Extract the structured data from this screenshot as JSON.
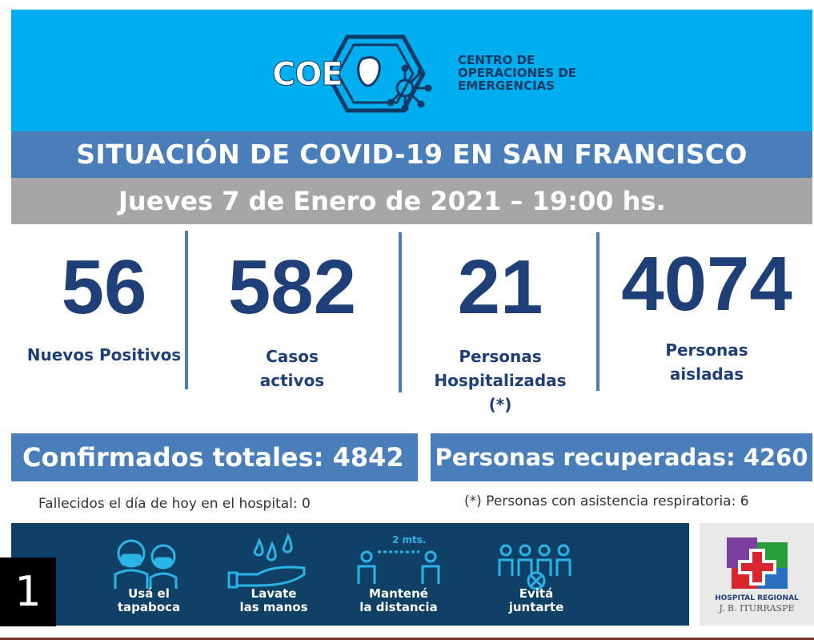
{
  "header": {
    "brand": "COE",
    "org_line1": "CENTRO DE",
    "org_line2": "OPERACIONES DE",
    "org_line3": "EMERGENCIAS"
  },
  "title": "SITUACIÓN DE COVID-19 EN SAN FRANCISCO",
  "date": "Jueves 7 de Enero de 2021 – 19:00 hs.",
  "stats": [
    {
      "value": "56",
      "label_line1": "Nuevos Positivos",
      "label_line2": "",
      "label_line3": ""
    },
    {
      "value": "582",
      "label_line1": "Casos",
      "label_line2": "activos",
      "label_line3": ""
    },
    {
      "value": "21",
      "label_line1": "Personas",
      "label_line2": "Hospitalizadas",
      "label_line3": "(*)"
    },
    {
      "value": "4074",
      "label_line1": "Personas",
      "label_line2": "aisladas",
      "label_line3": ""
    }
  ],
  "confirmed": "Confirmados totales: 4842",
  "recovered": "Personas recuperadas: 4260",
  "deaths_note": "Fallecidos el día de hoy en el hospital: 0",
  "respiratory_note": "(*) Personas con asistencia respiratoria: 6",
  "footer": {
    "tips": [
      {
        "icon": "face-mask-icon",
        "line1": "Usá el",
        "line2": "tapaboca"
      },
      {
        "icon": "hand-wash-icon",
        "line1": "Lavate",
        "line2": "las manos"
      },
      {
        "icon": "social-distance-icon",
        "line1": "Mantené",
        "line2": "la distancia",
        "badge": "2 mts."
      },
      {
        "icon": "no-gathering-icon",
        "line1": "Evitá",
        "line2": "juntarte"
      }
    ]
  },
  "hospital": {
    "line1": "HOSPITAL REGIONAL",
    "line2": "J. B. ITURRASPE"
  },
  "page_number": "1",
  "colors": {
    "header_bg": "#00aeef",
    "title_bg": "#4a7ebb",
    "date_bg": "#a6a6a6",
    "stat_text": "#1f3f78",
    "footer_bg": "#0f4166"
  }
}
